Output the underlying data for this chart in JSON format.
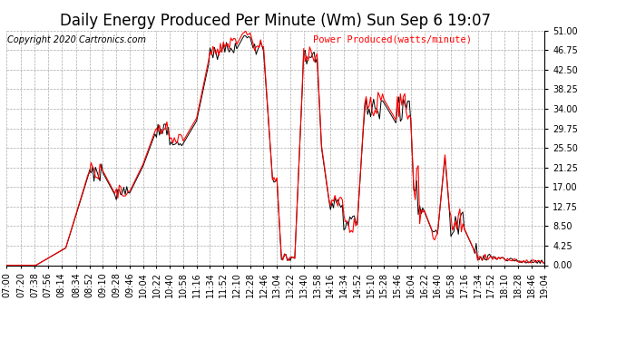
{
  "title": "Daily Energy Produced Per Minute (Wm) Sun Sep 6 19:07",
  "copyright": "Copyright 2020 Cartronics.com",
  "legend_label": "Power Produced(watts/minute)",
  "yticks": [
    0.0,
    4.25,
    8.5,
    12.75,
    17.0,
    21.25,
    25.5,
    29.75,
    34.0,
    38.25,
    42.5,
    46.75,
    51.0
  ],
  "ymax": 51.0,
  "ymin": 0.0,
  "background_color": "#ffffff",
  "plot_bg_color": "#ffffff",
  "grid_color": "#aaaaaa",
  "line_color_red": "#ff0000",
  "line_color_black": "#000000",
  "title_fontsize": 12,
  "tick_fontsize": 7,
  "xtick_labels": [
    "07:00",
    "07:20",
    "07:38",
    "07:56",
    "08:14",
    "08:34",
    "08:52",
    "09:10",
    "09:28",
    "09:46",
    "10:04",
    "10:22",
    "10:40",
    "10:58",
    "11:16",
    "11:34",
    "11:52",
    "12:10",
    "12:28",
    "12:46",
    "13:04",
    "13:22",
    "13:40",
    "13:58",
    "14:16",
    "14:34",
    "14:52",
    "15:10",
    "15:28",
    "15:46",
    "16:04",
    "16:22",
    "16:40",
    "16:58",
    "17:16",
    "17:34",
    "17:52",
    "18:10",
    "18:28",
    "18:46",
    "19:04"
  ]
}
